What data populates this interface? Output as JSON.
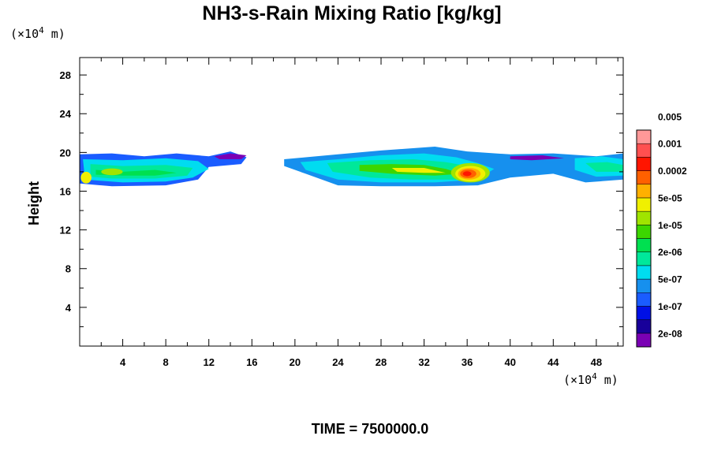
{
  "chart_data": {
    "type": "heatmap",
    "title": "NH3-s-Rain Mixing Ratio [kg/kg]",
    "ylabel": "Height",
    "xlabel": "",
    "y_unit": "(×10",
    "x_unit": "(×10",
    "unit_exponent": "4",
    "unit_suffix": " m)",
    "xlim": [
      0,
      50.5
    ],
    "ylim": [
      0,
      29.8
    ],
    "xticks": [
      4,
      8,
      12,
      16,
      20,
      24,
      28,
      32,
      36,
      40,
      44,
      48
    ],
    "yticks": [
      4,
      8,
      12,
      16,
      20,
      24,
      28
    ],
    "time_label": "TIME = 7500000.0",
    "colorbar": {
      "colors": [
        "#7a00b4",
        "#18009a",
        "#0010e6",
        "#1a5cff",
        "#1690ee",
        "#00dcf0",
        "#00e89a",
        "#00e050",
        "#3cd600",
        "#a0e400",
        "#f0f000",
        "#ffb000",
        "#ff6000",
        "#ff1500",
        "#ff5050",
        "#ff9898"
      ],
      "labels": [
        "2e-08",
        "1e-07",
        "5e-07",
        "2e-06",
        "1e-05",
        "5e-05",
        "0.0002",
        "0.001",
        "0.005"
      ]
    },
    "field_regions": [
      {
        "name": "left-cloud-layer",
        "x_range": [
          0,
          15.5
        ],
        "y_range": [
          16.5,
          20
        ],
        "peak_level": 12
      },
      {
        "name": "right-cloud-layer",
        "x_range": [
          19,
          50.5
        ],
        "y_range": [
          16.5,
          20.5
        ],
        "peak_level": 15
      },
      {
        "name": "core-max",
        "x": 36.2,
        "y": 17.8,
        "peak_level": 15
      }
    ]
  }
}
